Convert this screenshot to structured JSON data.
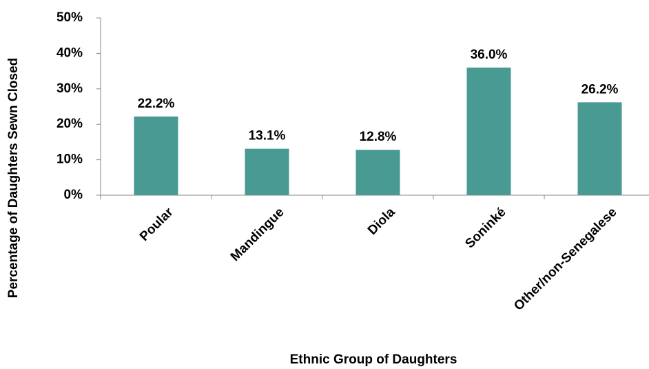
{
  "chart_data": {
    "type": "bar",
    "categories": [
      "Poular",
      "Mandingue",
      "Diola",
      "Soninké",
      "Other/non-Senegalese"
    ],
    "values": [
      22.2,
      13.1,
      12.8,
      36.0,
      26.2
    ],
    "value_labels": [
      "22.2%",
      "13.1%",
      "12.8%",
      "36.0%",
      "26.2%"
    ],
    "color": "#4a9a94",
    "x_label": "Ethnic Group of Daughters",
    "y_label": "Percentage of Daughters Sewn Closed",
    "ylim": [
      0,
      50
    ],
    "yticks": [
      {
        "value": 0,
        "label": "0%"
      },
      {
        "value": 10,
        "label": "10%"
      },
      {
        "value": 20,
        "label": "20%"
      },
      {
        "value": 30,
        "label": "30%"
      },
      {
        "value": 40,
        "label": "40%"
      },
      {
        "value": 50,
        "label": "50%"
      }
    ],
    "grid": false
  }
}
